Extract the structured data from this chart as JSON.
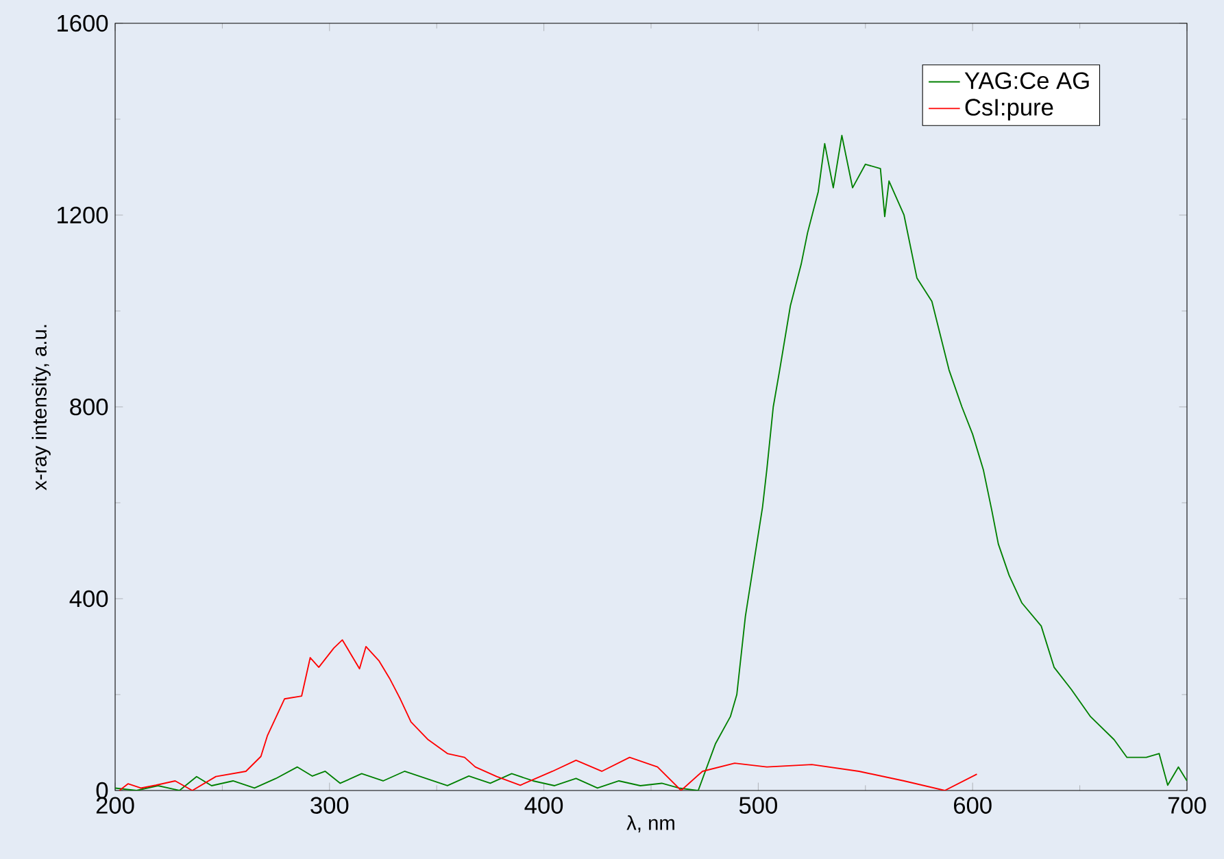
{
  "chart_data": {
    "type": "line",
    "xlabel": "λ, nm",
    "ylabel": "x-ray intensity, a.u.",
    "xlim": [
      200,
      700
    ],
    "ylim": [
      0,
      1600
    ],
    "xticks": [
      200,
      300,
      400,
      500,
      600,
      700
    ],
    "yticks": [
      0,
      400,
      800,
      1200,
      1600
    ],
    "legend": "top right",
    "grid": false,
    "series": [
      {
        "name": "YAG:Ce  AG",
        "color": "#008000",
        "x": [
          200,
          210,
          220,
          230,
          238,
          245,
          255,
          265,
          275,
          285,
          292,
          298,
          305,
          315,
          325,
          335,
          345,
          355,
          365,
          375,
          385,
          395,
          405,
          415,
          425,
          435,
          445,
          455,
          463,
          472,
          480,
          487,
          490,
          494,
          498,
          502,
          504,
          507,
          510,
          515,
          520,
          523,
          528,
          531,
          535,
          539,
          544,
          550,
          557,
          559,
          561,
          568,
          574,
          581,
          589,
          595,
          600,
          605,
          609,
          612,
          617,
          623,
          632,
          638,
          646,
          655,
          666,
          672,
          681,
          687,
          691,
          696,
          700
        ],
        "values": [
          5,
          0,
          10,
          0,
          29,
          10,
          20,
          5,
          25,
          49,
          30,
          40,
          15,
          35,
          20,
          40,
          25,
          10,
          30,
          15,
          35,
          20,
          10,
          25,
          5,
          20,
          10,
          15,
          5,
          0,
          97,
          154,
          200,
          363,
          477,
          591,
          669,
          800,
          877,
          1011,
          1097,
          1163,
          1249,
          1349,
          1257,
          1366,
          1257,
          1306,
          1297,
          1197,
          1271,
          1200,
          1069,
          1020,
          877,
          800,
          743,
          669,
          583,
          514,
          449,
          391,
          343,
          257,
          211,
          154,
          106,
          69,
          69,
          77,
          11,
          49,
          20
        ]
      },
      {
        "name": "CsI:pure",
        "color": "#ff0000",
        "x": [
          202,
          206,
          212,
          219,
          228,
          236,
          247,
          261,
          268,
          271,
          279,
          287,
          291,
          295,
          302,
          306,
          314,
          317,
          323,
          328,
          333,
          338,
          346,
          355,
          363,
          368,
          378,
          389,
          404,
          415,
          427,
          440,
          453,
          464,
          474,
          489,
          504,
          525,
          547,
          568,
          587,
          602
        ],
        "values": [
          0,
          14,
          5,
          11,
          20,
          0,
          29,
          40,
          71,
          114,
          191,
          197,
          277,
          257,
          297,
          314,
          254,
          300,
          271,
          234,
          191,
          143,
          106,
          77,
          69,
          49,
          29,
          11,
          40,
          63,
          40,
          69,
          49,
          0,
          40,
          57,
          49,
          54,
          40,
          20,
          0,
          34
        ]
      }
    ]
  }
}
